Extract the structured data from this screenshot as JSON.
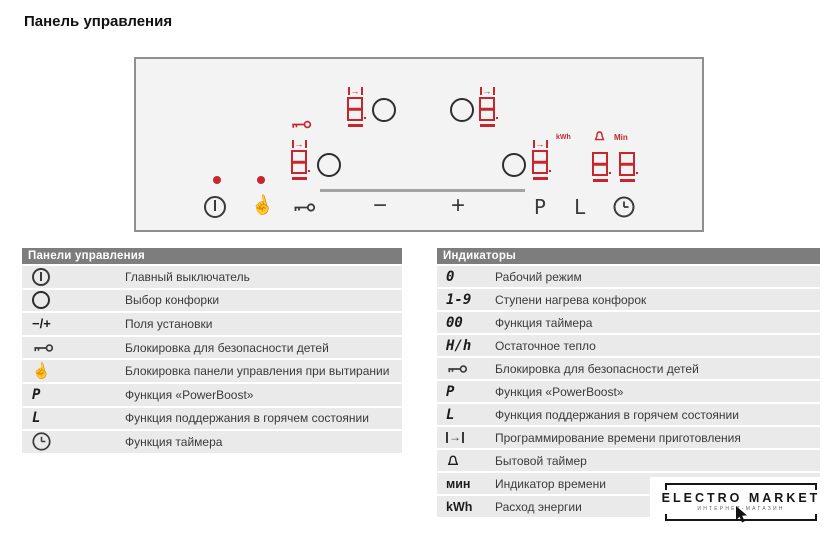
{
  "page": {
    "title": "Панель управления"
  },
  "panel": {
    "display_digit": "8",
    "kwh_label": "kWh",
    "min_label": "Min",
    "minus_label": "−",
    "plus_label": "+",
    "powerboost_label": "P",
    "keepwarm_label": "L",
    "colors": {
      "segment_red": "#c4272e",
      "icon_dark": "#3a3a3a",
      "panel_bg": "#f3f3f3"
    }
  },
  "tables": {
    "controls": {
      "header": "Панели управления",
      "rows": [
        {
          "icon": "power-icon",
          "text": "",
          "label": "Главный выключатель"
        },
        {
          "icon": "circle-icon",
          "text": "",
          "label": "Выбор конфорки"
        },
        {
          "icon": "minus-plus-glyph",
          "text": "−/+",
          "label": "Поля установки"
        },
        {
          "icon": "key-icon",
          "text": "",
          "label": "Блокировка для безопасности детей"
        },
        {
          "icon": "hand-icon",
          "text": "",
          "label": "Блокировка панели управления при вытирании"
        },
        {
          "icon": "seg-glyph",
          "text": "P",
          "label": "Функция «PowerBoost»"
        },
        {
          "icon": "seg-glyph",
          "text": "L",
          "label": "Функция поддержания в горячем состоянии"
        },
        {
          "icon": "clock-icon",
          "text": "",
          "label": "Функция таймера"
        }
      ]
    },
    "indicators": {
      "header": "Индикаторы",
      "rows": [
        {
          "icon": "seg-glyph",
          "text": "0",
          "label": "Рабочий режим"
        },
        {
          "icon": "seg-glyph",
          "text": "1-9",
          "label": "Ступени нагрева конфорок"
        },
        {
          "icon": "seg-glyph",
          "text": "00",
          "label": "Функция таймера"
        },
        {
          "icon": "seg-glyph",
          "text": "H/h",
          "label": "Остаточное тепло"
        },
        {
          "icon": "key-icon",
          "text": "",
          "label": "Блокировка для безопасности детей"
        },
        {
          "icon": "seg-glyph",
          "text": "P",
          "label": "Функция «PowerBoost»"
        },
        {
          "icon": "seg-glyph",
          "text": "L",
          "label": "Функция поддержания в горячем состоянии"
        },
        {
          "icon": "interval-arrow-icon",
          "text": "",
          "label": "Программирование времени приготовления"
        },
        {
          "icon": "bell-icon",
          "text": "",
          "label": "Бытовой таймер"
        },
        {
          "icon": "bold-glyph",
          "text": "мин",
          "label": "Индикатор времени"
        },
        {
          "icon": "bold-glyph",
          "text": "kWh",
          "label": "Расход энергии"
        }
      ]
    }
  },
  "logo": {
    "line1": "ELECTRO MARKET",
    "line2": "ИНТЕРНЕТ-МАГАЗИН"
  }
}
